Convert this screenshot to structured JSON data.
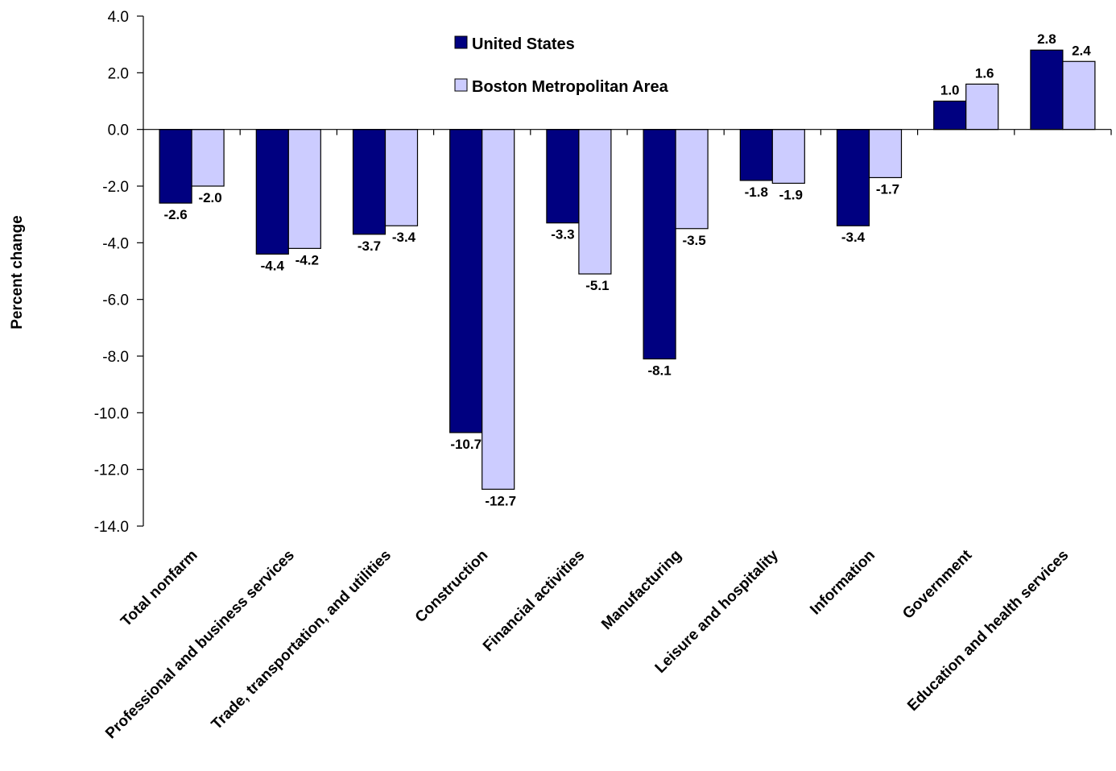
{
  "chart_data": {
    "type": "bar",
    "title": "",
    "xlabel": "",
    "ylabel": "Percent change",
    "ylim": [
      -14,
      4
    ],
    "y_tick_step": 2,
    "y_tick_labels": [
      "4.0",
      "2.0",
      "0.0",
      "-2.0",
      "-4.0",
      "-6.0",
      "-8.0",
      "-10.0",
      "-12.0",
      "-14.0"
    ],
    "grid": false,
    "legend_position": "top-center",
    "categories": [
      "Total nonfarm",
      "Professional and business services",
      "Trade, transportation, and utilities",
      "Construction",
      "Financial activities",
      "Manufacturing",
      "Leisure and hospitality",
      "Information",
      "Government",
      "Education and health services"
    ],
    "series": [
      {
        "name": "United States",
        "color": "#000080",
        "values": [
          -2.6,
          -4.4,
          -3.7,
          -10.7,
          -3.3,
          -8.1,
          -1.8,
          -3.4,
          1.0,
          2.8
        ],
        "labels": [
          "-2.6",
          "-4.4",
          "-3.7",
          "-10.7",
          "-3.3",
          "-8.1",
          "-1.8",
          "-3.4",
          "1.0",
          "2.8"
        ]
      },
      {
        "name": "Boston Metropolitan Area",
        "color": "#ccccff",
        "values": [
          -2.0,
          -4.2,
          -3.4,
          -12.7,
          -5.1,
          -3.5,
          -1.9,
          -1.7,
          1.6,
          2.4
        ],
        "labels": [
          "-2.0",
          "-4.2",
          "-3.4",
          "-12.7",
          "-5.1",
          "-3.5",
          "-1.9",
          "-1.7",
          "1.6",
          "2.4"
        ]
      }
    ]
  }
}
